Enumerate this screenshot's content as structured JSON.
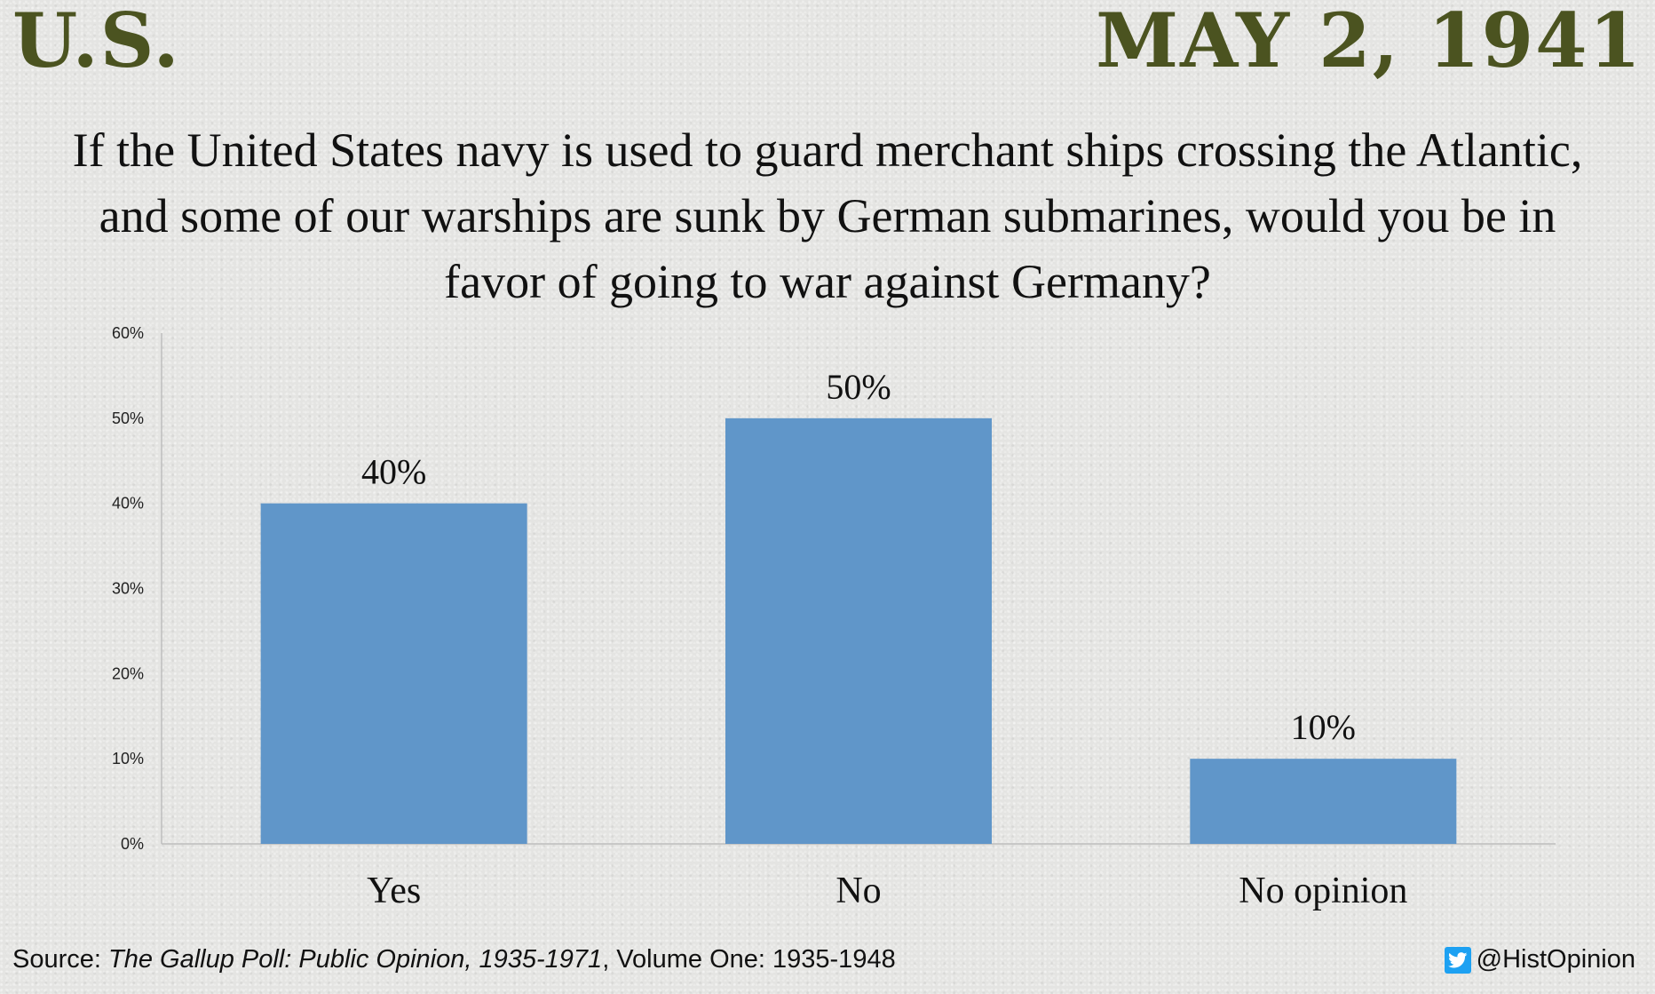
{
  "header": {
    "country": "U.S.",
    "date": "MAY 2, 1941"
  },
  "question": "If the United States navy is used to guard merchant ships crossing the Atlantic, and some of our warships are sunk by German submarines, would you be in favor of going to war against Germany?",
  "chart_data": {
    "type": "bar",
    "categories": [
      "Yes",
      "No",
      "No opinion"
    ],
    "values": [
      40,
      50,
      10
    ],
    "value_labels": [
      "40%",
      "50%",
      "10%"
    ],
    "ylim": [
      0,
      60
    ],
    "yticks": [
      "0%",
      "10%",
      "20%",
      "30%",
      "40%",
      "50%",
      "60%"
    ],
    "bar_color": "#6096c9",
    "grid": false,
    "legend": "none"
  },
  "footer": {
    "source_prefix": "Source: ",
    "source_publication": "The Gallup Poll: Public Opinion, 1935-1971",
    "source_suffix": ", Volume One: 1935-1948",
    "twitter_icon": "twitter-bird-icon",
    "handle": "@HistOpinion"
  },
  "colors": {
    "header": "#4b5320",
    "bar": "#6096c9",
    "twitter": "#1da1f2"
  }
}
